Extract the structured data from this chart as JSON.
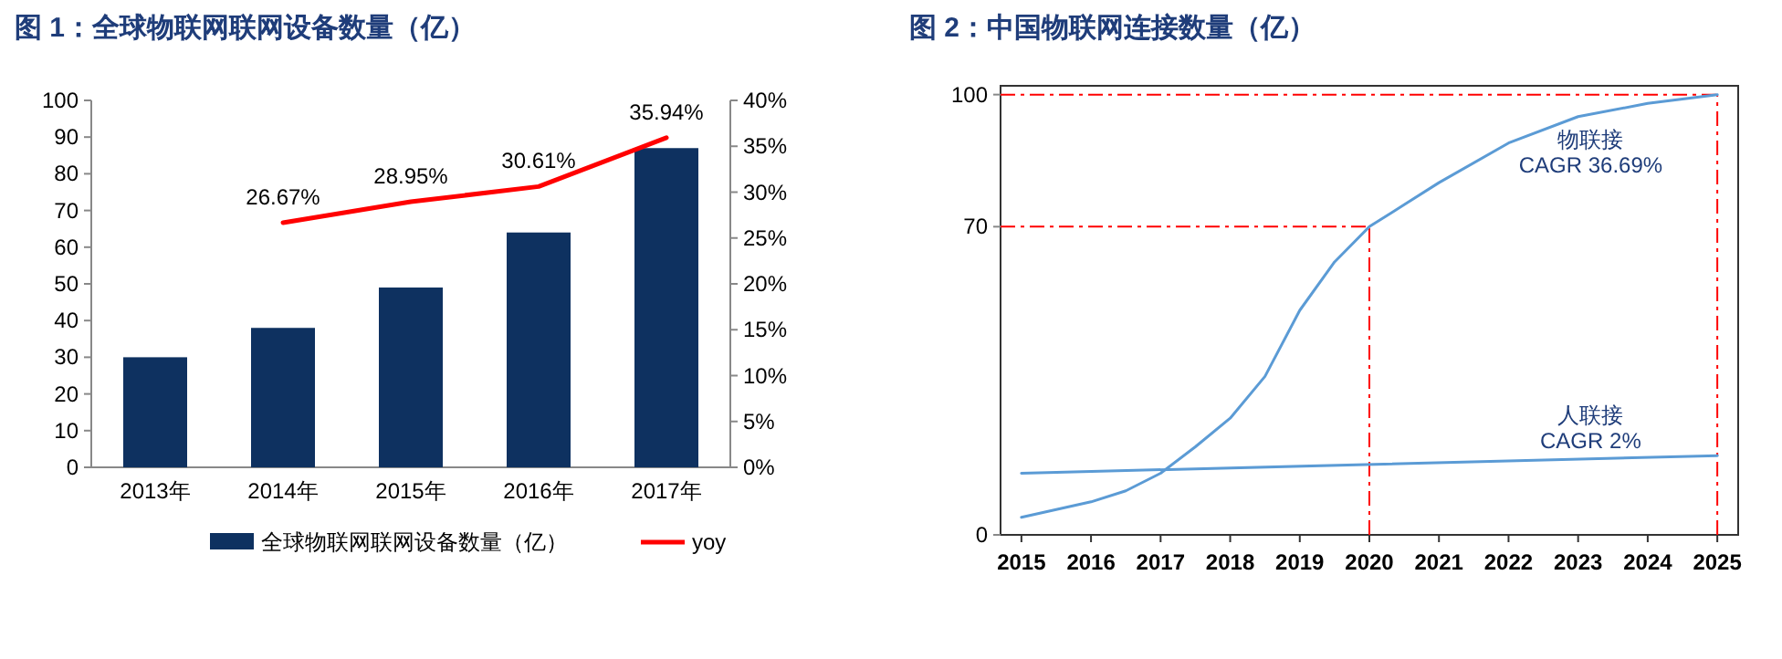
{
  "chart_data": [
    {
      "type": "bar",
      "title": "图 1：全球物联网联网设备数量（亿）",
      "categories": [
        "2013年",
        "2014年",
        "2015年",
        "2016年",
        "2017年"
      ],
      "series": [
        {
          "name": "全球物联网联网设备数量（亿）",
          "color": "#0e3160",
          "values": [
            30,
            38,
            49,
            64,
            87
          ]
        },
        {
          "name": "yoy",
          "type": "line",
          "axis": "y2",
          "color": "#ff0000",
          "values": [
            null,
            26.67,
            28.95,
            30.61,
            35.94
          ],
          "value_labels": [
            null,
            "26.67%",
            "28.95%",
            "30.61%",
            "35.94%"
          ]
        }
      ],
      "ylim": [
        0,
        100
      ],
      "yticks": [
        0,
        10,
        20,
        30,
        40,
        50,
        60,
        70,
        80,
        90,
        100
      ],
      "y2lim": [
        0,
        40
      ],
      "y2ticks": [
        {
          "value": 0,
          "label": "0%"
        },
        {
          "value": 5,
          "label": "5%"
        },
        {
          "value": 10,
          "label": "10%"
        },
        {
          "value": 15,
          "label": "15%"
        },
        {
          "value": 20,
          "label": "20%"
        },
        {
          "value": 25,
          "label": "25%"
        },
        {
          "value": 30,
          "label": "30%"
        },
        {
          "value": 35,
          "label": "35%"
        },
        {
          "value": 40,
          "label": "40%"
        }
      ],
      "legend": "bottom"
    },
    {
      "type": "line",
      "title": "图 2：中国物联网连接数量（亿）",
      "x": [
        2015,
        2016,
        2016.5,
        2017,
        2017.5,
        2018,
        2018.5,
        2019,
        2019.5,
        2020,
        2020.5,
        2021,
        2022,
        2023,
        2024,
        2025
      ],
      "series": [
        {
          "name": "物联接",
          "color": "#5b9bd5",
          "values": [
            4,
            7.5,
            10,
            14,
            20,
            26.5,
            36,
            51,
            62,
            70,
            75,
            80,
            89,
            95,
            98,
            100
          ]
        },
        {
          "name": "人联接",
          "color": "#5b9bd5",
          "x": [
            2015,
            2025
          ],
          "values": [
            14,
            18
          ]
        }
      ],
      "xlim": [
        2014.7,
        2025.3
      ],
      "xticks": [
        2015,
        2016,
        2017,
        2018,
        2019,
        2020,
        2021,
        2022,
        2023,
        2024,
        2025
      ],
      "ylim": [
        0,
        102
      ],
      "yticks": [
        0,
        70,
        100
      ],
      "ref_lines": [
        {
          "axis": "y",
          "value": 100,
          "color": "#ff0000",
          "line_style": "dashed"
        },
        {
          "axis": "x",
          "value": 2025,
          "color": "#ff0000",
          "line_style": "dashed"
        },
        {
          "axis": "y",
          "value": 70,
          "color": "#ff0000",
          "line_style": "dashed"
        },
        {
          "axis": "x",
          "value": 2020,
          "color": "#ff0000",
          "line_style": "dashed"
        }
      ],
      "annotations": [
        "CAGR 36.69%",
        "CAGR  2%"
      ],
      "legend": false
    }
  ]
}
